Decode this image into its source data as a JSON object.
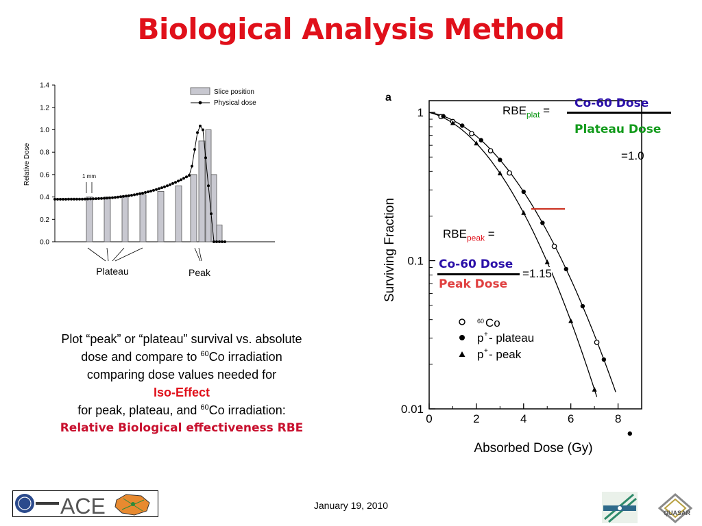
{
  "title": "Biological Analysis Method",
  "left_chart": {
    "y_axis_label": "Relative Dose",
    "y_ticks": [
      "0.0",
      "0.2",
      "0.4",
      "0.6",
      "0.8",
      "1.0",
      "1.2",
      "1.4"
    ],
    "legend_slice": "Slice position",
    "legend_dose": "Physical dose",
    "scale_note": "1 mm",
    "label_plateau": "Plateau",
    "label_peak": "Peak"
  },
  "right_chart": {
    "panel_label": "a",
    "y_axis_label": "Surviving Fraction",
    "x_axis_label": "Absorbed Dose (Gy)",
    "y_ticks": [
      "1",
      "0.1",
      "0.01"
    ],
    "x_ticks": [
      "0",
      "2",
      "4",
      "6",
      "8"
    ],
    "legend": [
      {
        "symbol": "open-circle",
        "label_sup": "60",
        "label": "Co"
      },
      {
        "symbol": "filled-circle",
        "label_sup": "+",
        "label_pre": "p",
        "label": " - plateau"
      },
      {
        "symbol": "filled-triangle",
        "label_sup": "+",
        "label_pre": "p",
        "label": " - peak"
      }
    ]
  },
  "rbe_plat": {
    "prefix": "RBE",
    "sub": "plat",
    "eq": "=",
    "numerator": "Co-60 Dose",
    "denominator": "Plateau Dose",
    "result": "=1.0"
  },
  "rbe_peak": {
    "prefix": "RBE",
    "sub": "peak",
    "eq": "=",
    "numerator": "Co-60 Dose",
    "denominator": "Peak Dose",
    "result": "=1.15"
  },
  "body": {
    "line1": "Plot “peak” or “plateau” survival vs. absolute",
    "line2a": "dose  and compare to ",
    "line2sup": "60",
    "line2b": "Co irradiation",
    "line3": "comparing dose values needed for",
    "line4": "Iso-Effect",
    "line5a": "for peak, plateau, and ",
    "line5sup": "60",
    "line5b": "Co irradiation:",
    "line6": "Relative Biological effectiveness RBE"
  },
  "footer": {
    "date": "January 19, 2010",
    "logo_text": "ACE",
    "quasar_text": "QUASAR"
  },
  "colors": {
    "title": "#e0101a",
    "co60": "#2a0fa8",
    "plateau": "#119a1a",
    "peak": "#e04040"
  }
}
